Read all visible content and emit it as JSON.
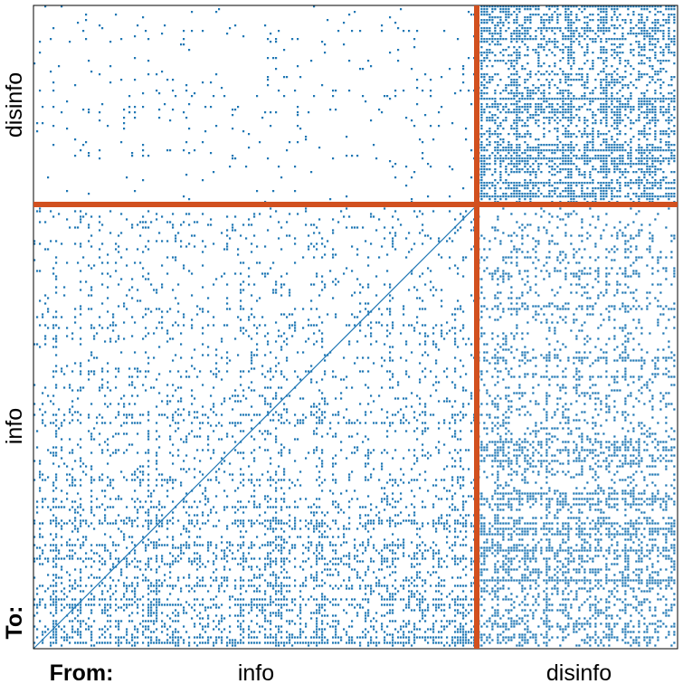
{
  "chart_data": {
    "type": "heatmap",
    "description_free": true,
    "matrix_kind": "binary adjacency (sparse)",
    "x_prefix": "From:",
    "y_prefix": "To:",
    "x_groups": [
      "info",
      "disinfo"
    ],
    "y_groups": [
      "disinfo",
      "info"
    ],
    "blocks": [
      {
        "to": "disinfo",
        "from": "info",
        "density": 0.03
      },
      {
        "to": "disinfo",
        "from": "disinfo",
        "density": 0.62
      },
      {
        "to": "info",
        "from": "info",
        "density": 0.2
      },
      {
        "to": "info",
        "from": "disinfo",
        "density": 0.35
      }
    ],
    "group_sizes": {
      "info": 0.69,
      "disinfo": 0.31
    },
    "legend": "none",
    "grid": false
  },
  "colors": {
    "dot": "#1f77b4",
    "separator": "#d1501f",
    "background": "#ffffff",
    "frame": "#000000"
  }
}
